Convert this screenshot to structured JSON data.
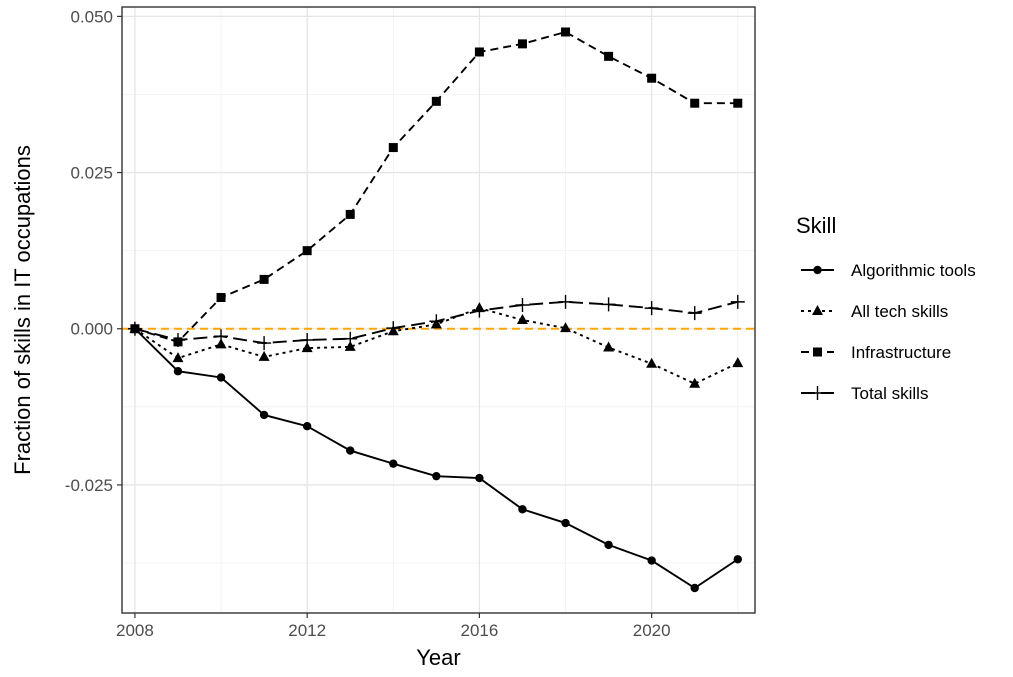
{
  "chart_data": {
    "type": "line",
    "title": "",
    "xlabel": "Year",
    "ylabel": "Fraction of skills in IT occupations",
    "xlim": [
      2007.7,
      2022.4
    ],
    "ylim": [
      -0.0455,
      0.0515
    ],
    "x_ticks": [
      2008,
      2012,
      2016,
      2020
    ],
    "x_tick_labels": [
      "2008",
      "2012",
      "2016",
      "2020"
    ],
    "y_ticks": [
      -0.025,
      0.0,
      0.025,
      0.05
    ],
    "y_tick_labels": [
      "-0.025",
      "0.000",
      "0.025",
      "0.050"
    ],
    "grid": true,
    "reference_line": {
      "y": 0.0,
      "color": "#FFA500",
      "style": "dashed"
    },
    "legend": {
      "title": "Skill",
      "position": "right"
    },
    "x": [
      2008,
      2009,
      2010,
      2011,
      2012,
      2013,
      2014,
      2015,
      2016,
      2017,
      2018,
      2019,
      2020,
      2021,
      2022
    ],
    "series": [
      {
        "name": "Algorithmic tools",
        "marker": "circle",
        "dash": "solid",
        "values": [
          0.0,
          -0.0068,
          -0.0078,
          -0.0138,
          -0.0156,
          -0.0195,
          -0.0216,
          -0.0236,
          -0.0239,
          -0.0289,
          -0.0311,
          -0.0346,
          -0.0371,
          -0.0415,
          -0.0369
        ]
      },
      {
        "name": "All tech skills",
        "marker": "triangle",
        "dash": "dotted",
        "values": [
          0.0,
          -0.0047,
          -0.0025,
          -0.0045,
          -0.0031,
          -0.0029,
          -0.0004,
          0.0007,
          0.0033,
          0.0014,
          0.0001,
          -0.003,
          -0.0056,
          -0.0088,
          -0.0055
        ]
      },
      {
        "name": "Infrastructure",
        "marker": "square",
        "dash": "dashed",
        "values": [
          0.0,
          -0.0021,
          0.005,
          0.0079,
          0.0125,
          0.0183,
          0.029,
          0.0364,
          0.0443,
          0.0456,
          0.0475,
          0.0436,
          0.0401,
          0.0361,
          0.0361
        ]
      },
      {
        "name": "Total skills",
        "marker": "plus",
        "dash": "longdash",
        "values": [
          0.0,
          -0.0018,
          -0.0012,
          -0.0023,
          -0.0018,
          -0.0016,
          0.0001,
          0.0012,
          0.0029,
          0.0038,
          0.0043,
          0.0039,
          0.0033,
          0.0025,
          0.0043
        ]
      }
    ]
  }
}
